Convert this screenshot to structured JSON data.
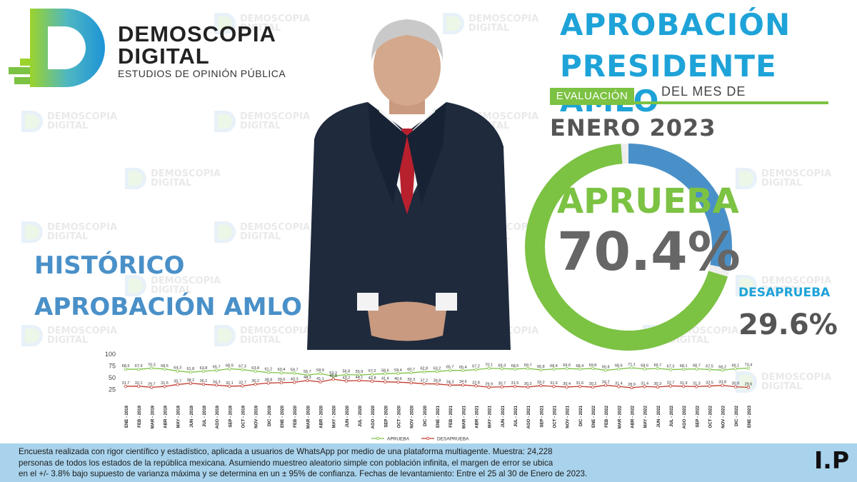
{
  "brand": {
    "name_line1": "DEMOSCOPIA",
    "name_line2": "DIGITAL",
    "tagline": "ESTUDIOS DE OPINIÓN PÚBLICA",
    "watermark_line1": "DEMOSCOPIA",
    "watermark_line2": "DIGITAL"
  },
  "header": {
    "title_line1": "APROBACIÓN",
    "title_line2": "PRESIDENTE AMLO",
    "eval_badge": "EVALUACIÓN",
    "period_prefix": "DEL MES DE",
    "period": "ENERO 2023"
  },
  "result": {
    "approve_label": "APRUEBA",
    "approve_value": "70.4%",
    "approve_pct": 70.4,
    "disapprove_label": "DESAPRUEBA",
    "disapprove_value": "29.6%",
    "disapprove_pct": 29.6
  },
  "history": {
    "title_line1": "HISTÓRICO",
    "title_line2": "APROBACIÓN AMLO"
  },
  "chart_data": {
    "type": "line",
    "ylim": [
      0,
      100
    ],
    "yticks": [
      25,
      50,
      75,
      100
    ],
    "grid": false,
    "legend_position": "bottom",
    "categories": [
      "ENE - 2019",
      "FEB - 2019",
      "MAR - 2019",
      "ABR - 2019",
      "MAY - 2019",
      "JUN - 2019",
      "JUL - 2019",
      "AGO - 2019",
      "SEP - 2019",
      "OCT - 2019",
      "NOV - 2019",
      "DIC - 2019",
      "ENE - 2020",
      "FEB - 2020",
      "MAR - 2020",
      "ABR - 2020",
      "MAY - 2020",
      "JUN - 2020",
      "JUL - 2020",
      "AGO - 2020",
      "SEP - 2020",
      "OCT - 2020",
      "NOV - 2020",
      "DIC - 2020",
      "ENE - 2021",
      "FEB - 2021",
      "MAR - 2021",
      "ABR - 2021",
      "MAY - 2021",
      "JUN - 2021",
      "JUL - 2021",
      "AGO - 2021",
      "SEP - 2021",
      "OCT - 2021",
      "NOV - 2021",
      "DIC - 2021",
      "ENE - 2022",
      "FEB - 2022",
      "MAR - 2022",
      "ABR - 2022",
      "MAY - 2022",
      "JUN - 2022",
      "JUL - 2022",
      "AGO - 2022",
      "SEP - 2022",
      "OCT - 2022",
      "NOV - 2022",
      "DIC - 2022",
      "ENE - 2023"
    ],
    "series": [
      {
        "name": "APRUEBA",
        "color": "#7cc243",
        "values": [
          68.3,
          67.9,
          70.3,
          68.5,
          64.3,
          61.8,
          63.8,
          65.7,
          68.9,
          67.3,
          63.8,
          61.2,
          60.4,
          59.7,
          55.7,
          58.9,
          53.2,
          56.8,
          55.9,
          57.2,
          58.6,
          59.4,
          60.7,
          62.8,
          63.2,
          65.7,
          65.4,
          67.2,
          70.1,
          69.3,
          68.5,
          69.7,
          66.8,
          68.4,
          69.6,
          68.4,
          69.8,
          65.8,
          68.6,
          71.1,
          68.6,
          69.7,
          67.3,
          68.1,
          68.7,
          67.5,
          66.2,
          69.1,
          70.4
        ]
      },
      {
        "name": "DESAPRUEBA",
        "color": "#c0392b",
        "values": [
          31.7,
          32.1,
          29.7,
          31.5,
          35.7,
          38.2,
          36.1,
          34.3,
          32.1,
          32.7,
          36.2,
          38.8,
          39.6,
          40.3,
          44.3,
          41.1,
          46.8,
          43.2,
          44.1,
          42.8,
          41.4,
          40.6,
          39.3,
          37.2,
          36.8,
          34.3,
          34.6,
          32.8,
          29.9,
          30.7,
          31.5,
          30.3,
          33.2,
          31.6,
          30.4,
          31.6,
          30.2,
          34.2,
          31.4,
          28.9,
          31.4,
          30.3,
          32.7,
          31.9,
          31.3,
          32.5,
          33.8,
          30.9,
          29.6
        ]
      }
    ]
  },
  "footer": {
    "line1": "Encuesta realizada con rigor científico y estadístico, aplicada a usuarios de WhatsApp por medio de una plataforma multiagente. Muestra: 24,228",
    "line2": "personas de todos los estados de la república mexicana. Asumiendo muestreo aleatorio simple con población infinita, el margen de error se ubica",
    "line3": "en el +/- 3.8% bajo supuesto de varianza máxima y se determina en un ± 95% de confianza. Fechas de levantamiento: Entre el 25 al 30 de Enero de 2023.",
    "ip": "I.P"
  },
  "colors": {
    "green": "#7cc243",
    "blue": "#1ea3d8",
    "dark_blue": "#4a90c8",
    "red": "#c0392b",
    "footer_bg": "#a9d3ec"
  }
}
